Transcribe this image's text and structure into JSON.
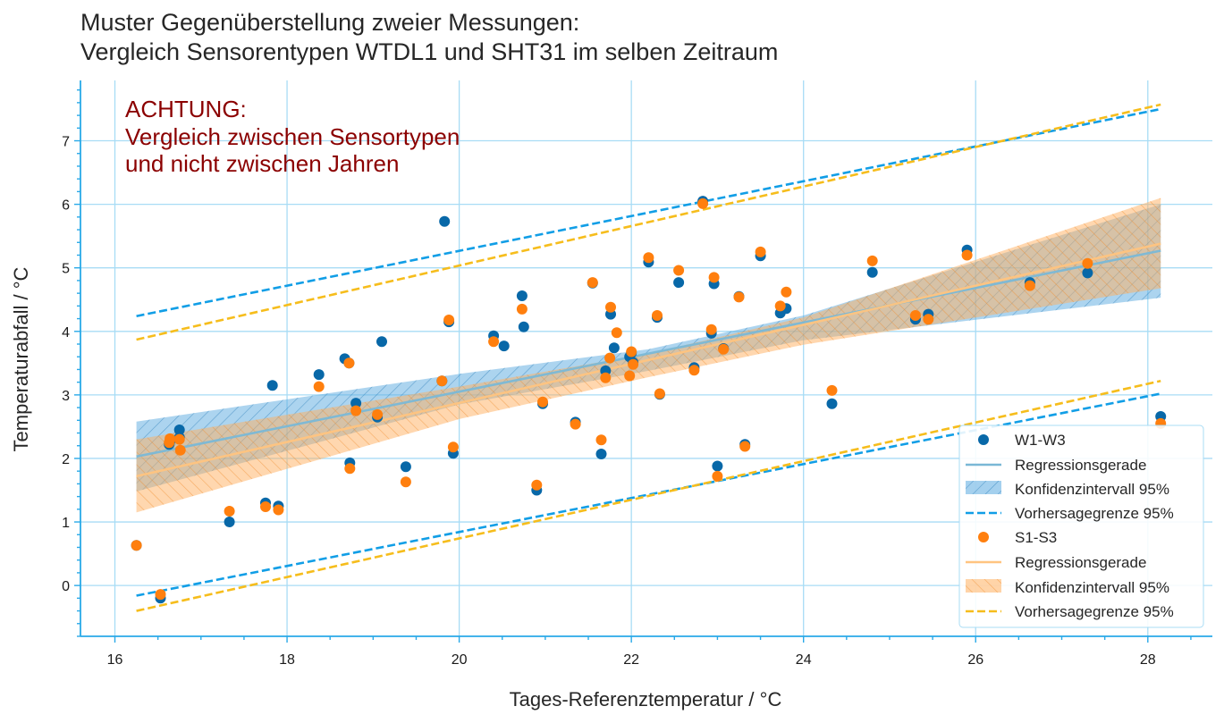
{
  "chart_data": {
    "type": "scatter",
    "title": [
      "Muster Gegenüberstellung zweier Messungen:",
      "Vergleich Sensorentypen WTDL1 und SHT31 im selben Zeitraum"
    ],
    "annotation": [
      "ACHTUNG:",
      "Vergleich zwischen Sensortypen",
      "und nicht zwischen Jahren"
    ],
    "xlabel": "Tages-Referenztemperatur / °C",
    "ylabel": "Temperaturabfall / °C",
    "xlim": [
      15.6,
      28.75
    ],
    "ylim": [
      -0.8,
      7.95
    ],
    "xticks": [
      16,
      18,
      20,
      22,
      24,
      26,
      28
    ],
    "yticks": [
      0,
      1,
      2,
      3,
      4,
      5,
      6,
      7
    ],
    "grid": true,
    "legend_position": "lower right",
    "colors": {
      "w_points": "#0868a8",
      "w_line": "#7ab8d6",
      "w_band": "#5aa9e0",
      "w_pred": "#119ee6",
      "s_points": "#ff7f0e",
      "s_line": "#ffc480",
      "s_band": "#ffb060",
      "s_pred": "#f6bd1c",
      "grid": "#a8dcf5",
      "axis": "#29a9e8",
      "note": "#8b0000"
    },
    "series": [
      {
        "name": "W1-W3",
        "regression": {
          "name": "Regressionsgerade",
          "x": [
            16.25,
            28.15
          ],
          "y": [
            2.03,
            5.27
          ]
        },
        "confidence": {
          "name": "Konfidenzintervall 95%",
          "x": [
            16.25,
            20,
            22.2,
            24,
            28.15
          ],
          "lower": [
            1.48,
            2.85,
            3.38,
            3.86,
            4.53
          ],
          "upper": [
            2.58,
            3.33,
            3.72,
            4.25,
            6.0
          ]
        },
        "prediction": {
          "name": "Vorhersagegrenze 95%",
          "x": [
            16.25,
            28.15
          ],
          "lower": [
            -0.16,
            3.02
          ],
          "upper": [
            4.24,
            7.5
          ]
        },
        "points": [
          [
            16.25,
            0.63
          ],
          [
            16.53,
            -0.2
          ],
          [
            16.63,
            2.22
          ],
          [
            16.64,
            2.27
          ],
          [
            16.75,
            2.45
          ],
          [
            16.75,
            2.33
          ],
          [
            17.33,
            1.0
          ],
          [
            17.75,
            1.3
          ],
          [
            17.83,
            3.15
          ],
          [
            17.9,
            1.25
          ],
          [
            18.37,
            3.32
          ],
          [
            18.67,
            3.57
          ],
          [
            18.72,
            3.5
          ],
          [
            18.73,
            1.93
          ],
          [
            18.8,
            2.87
          ],
          [
            19.05,
            2.65
          ],
          [
            19.1,
            3.84
          ],
          [
            19.38,
            1.87
          ],
          [
            19.8,
            3.22
          ],
          [
            19.83,
            5.73
          ],
          [
            19.88,
            4.15
          ],
          [
            19.93,
            2.08
          ],
          [
            20.4,
            3.93
          ],
          [
            20.52,
            3.77
          ],
          [
            20.73,
            4.56
          ],
          [
            20.75,
            4.07
          ],
          [
            20.9,
            1.5
          ],
          [
            20.97,
            2.86
          ],
          [
            21.35,
            2.57
          ],
          [
            21.55,
            4.76
          ],
          [
            21.65,
            2.07
          ],
          [
            21.7,
            3.38
          ],
          [
            21.76,
            4.27
          ],
          [
            21.8,
            3.74
          ],
          [
            21.98,
            3.6
          ],
          [
            22.0,
            3.66
          ],
          [
            22.02,
            3.51
          ],
          [
            22.2,
            5.09
          ],
          [
            22.3,
            4.22
          ],
          [
            22.33,
            3.01
          ],
          [
            22.55,
            4.77
          ],
          [
            22.73,
            3.43
          ],
          [
            22.83,
            6.05
          ],
          [
            22.93,
            3.97
          ],
          [
            22.96,
            4.75
          ],
          [
            23.0,
            1.88
          ],
          [
            23.07,
            3.73
          ],
          [
            23.25,
            4.55
          ],
          [
            23.32,
            2.22
          ],
          [
            23.5,
            5.19
          ],
          [
            23.73,
            4.29
          ],
          [
            23.8,
            4.36
          ],
          [
            24.33,
            2.86
          ],
          [
            24.8,
            4.93
          ],
          [
            25.3,
            4.19
          ],
          [
            25.45,
            4.27
          ],
          [
            25.9,
            5.28
          ],
          [
            26.63,
            4.77
          ],
          [
            27.3,
            4.92
          ],
          [
            28.15,
            2.66
          ]
        ]
      },
      {
        "name": "S1-S3",
        "regression": {
          "name": "Regressionsgerade",
          "x": [
            16.25,
            28.15
          ],
          "y": [
            1.72,
            5.38
          ]
        },
        "confidence": {
          "name": "Konfidenzintervall 95%",
          "x": [
            16.25,
            20,
            22.2,
            24,
            28.15
          ],
          "lower": [
            1.15,
            2.62,
            3.28,
            3.79,
            4.68
          ],
          "upper": [
            2.3,
            3.13,
            3.65,
            4.22,
            6.1
          ]
        },
        "prediction": {
          "name": "Vorhersagegrenze 95%",
          "x": [
            16.25,
            28.15
          ],
          "lower": [
            -0.4,
            3.22
          ],
          "upper": [
            3.87,
            7.57
          ]
        },
        "points": [
          [
            16.25,
            0.63
          ],
          [
            16.53,
            -0.14
          ],
          [
            16.63,
            2.25
          ],
          [
            16.64,
            2.31
          ],
          [
            16.75,
            2.3
          ],
          [
            16.76,
            2.13
          ],
          [
            17.33,
            1.17
          ],
          [
            17.75,
            1.24
          ],
          [
            17.9,
            1.19
          ],
          [
            18.37,
            3.13
          ],
          [
            18.72,
            3.5
          ],
          [
            18.73,
            1.84
          ],
          [
            18.8,
            2.75
          ],
          [
            19.05,
            2.69
          ],
          [
            19.38,
            1.63
          ],
          [
            19.8,
            3.22
          ],
          [
            19.88,
            4.18
          ],
          [
            19.93,
            2.18
          ],
          [
            20.4,
            3.84
          ],
          [
            20.73,
            4.35
          ],
          [
            20.9,
            1.58
          ],
          [
            20.97,
            2.89
          ],
          [
            21.35,
            2.54
          ],
          [
            21.55,
            4.77
          ],
          [
            21.65,
            2.29
          ],
          [
            21.7,
            3.27
          ],
          [
            21.76,
            4.38
          ],
          [
            21.75,
            3.58
          ],
          [
            21.83,
            3.98
          ],
          [
            21.98,
            3.3
          ],
          [
            22.0,
            3.68
          ],
          [
            22.02,
            3.48
          ],
          [
            22.2,
            5.16
          ],
          [
            22.3,
            4.25
          ],
          [
            22.33,
            3.02
          ],
          [
            22.55,
            4.96
          ],
          [
            22.73,
            3.39
          ],
          [
            22.83,
            6.01
          ],
          [
            22.93,
            4.03
          ],
          [
            22.96,
            4.85
          ],
          [
            23.0,
            1.72
          ],
          [
            23.07,
            3.72
          ],
          [
            23.25,
            4.54
          ],
          [
            23.32,
            2.19
          ],
          [
            23.5,
            5.25
          ],
          [
            23.73,
            4.4
          ],
          [
            23.8,
            4.62
          ],
          [
            24.33,
            3.07
          ],
          [
            24.8,
            5.11
          ],
          [
            25.3,
            4.25
          ],
          [
            25.45,
            4.19
          ],
          [
            25.9,
            5.2
          ],
          [
            26.63,
            4.72
          ],
          [
            27.3,
            5.07
          ],
          [
            28.15,
            2.55
          ]
        ]
      }
    ]
  }
}
